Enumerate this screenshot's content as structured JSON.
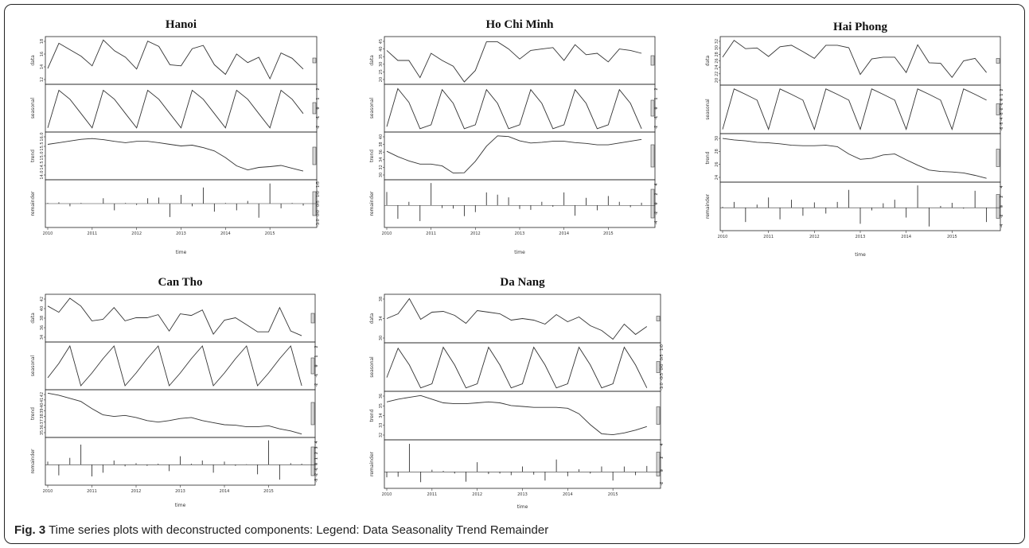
{
  "figure": {
    "label": "Fig. 3",
    "caption": "Time series plots with deconstructed components: Legend: Data Seasonality Trend Remainder"
  },
  "chart_data": [
    {
      "type": "line",
      "title": "Hanoi",
      "xlabel": "time",
      "x_ticks": [
        "2010",
        "2011",
        "2012",
        "2013",
        "2014",
        "2015"
      ],
      "x_range": [
        2010,
        2016
      ],
      "x": [
        2010.0,
        2010.25,
        2010.5,
        2010.75,
        2011.0,
        2011.25,
        2011.5,
        2011.75,
        2012.0,
        2012.25,
        2012.5,
        2012.75,
        2013.0,
        2013.25,
        2013.5,
        2013.75,
        2014.0,
        2014.25,
        2014.5,
        2014.75,
        2015.0,
        2015.25,
        2015.5,
        2015.75
      ],
      "panels": [
        {
          "name": "data",
          "type": "line",
          "ylim": [
            11,
            19
          ],
          "y_ticks": [
            "12",
            "14",
            "16",
            "18"
          ],
          "values": [
            13.5,
            18.2,
            17.0,
            15.8,
            14.0,
            18.8,
            16.8,
            15.6,
            13.4,
            18.6,
            17.6,
            14.2,
            14.0,
            17.2,
            17.8,
            14.2,
            12.4,
            16.2,
            14.6,
            15.6,
            11.6,
            16.4,
            15.4,
            13.4
          ]
        },
        {
          "name": "seasonal",
          "type": "line",
          "ylim": [
            -2.4,
            2.4
          ],
          "y_ticks": [
            "-2",
            "-1",
            "0",
            "1",
            "2"
          ],
          "values": [
            -2.2,
            2.0,
            1.0,
            -0.6,
            -2.2,
            2.0,
            1.0,
            -0.6,
            -2.2,
            2.0,
            1.0,
            -0.6,
            -2.2,
            2.0,
            1.0,
            -0.6,
            -2.2,
            2.0,
            1.0,
            -0.6,
            -2.2,
            2.0,
            1.0,
            -0.6
          ]
        },
        {
          "name": "trend",
          "type": "line",
          "ylim": [
            13.8,
            16.4
          ],
          "y_ticks": [
            "14.0",
            "14.5",
            "15.0",
            "15.5",
            "16.0"
          ],
          "values": [
            15.8,
            15.9,
            16.0,
            16.1,
            16.15,
            16.08,
            15.98,
            15.9,
            15.98,
            15.98,
            15.9,
            15.8,
            15.7,
            15.75,
            15.6,
            15.4,
            15.0,
            14.5,
            14.25,
            14.4,
            14.45,
            14.52,
            14.35,
            14.18
          ]
        },
        {
          "name": "remainder",
          "type": "spike",
          "ylim": [
            -1.6,
            1.6
          ],
          "y_ticks": [
            "-1.0",
            "0.0",
            "0.5",
            "1.0",
            "1.5"
          ],
          "values": [
            0.05,
            0.1,
            -0.2,
            0.05,
            0.0,
            0.4,
            -0.5,
            0.05,
            -0.1,
            0.4,
            0.45,
            -1.0,
            0.65,
            -0.2,
            1.2,
            -0.6,
            0.05,
            -0.5,
            0.2,
            -1.05,
            1.5,
            -0.35,
            0.05,
            -0.15
          ]
        }
      ]
    },
    {
      "type": "line",
      "title": "Ho Chi Minh",
      "xlabel": "time",
      "x_ticks": [
        "2010",
        "2011",
        "2012",
        "2013",
        "2014",
        "2015"
      ],
      "x_range": [
        2010,
        2016
      ],
      "x": [
        2010.0,
        2010.25,
        2010.5,
        2010.75,
        2011.0,
        2011.25,
        2011.5,
        2011.75,
        2012.0,
        2012.25,
        2012.5,
        2012.75,
        2013.0,
        2013.25,
        2013.5,
        2013.75,
        2014.0,
        2014.25,
        2014.5,
        2014.75,
        2015.0,
        2015.25,
        2015.5,
        2015.75
      ],
      "panels": [
        {
          "name": "data",
          "type": "line",
          "ylim": [
            16,
            46
          ],
          "y_ticks": [
            "20",
            "25",
            "30",
            "35",
            "40",
            "45"
          ],
          "values": [
            38,
            31,
            31,
            19,
            36,
            31,
            27,
            16,
            24,
            44,
            44,
            39,
            32,
            38,
            39,
            40,
            31,
            42,
            35,
            36,
            30,
            39,
            38,
            36
          ]
        },
        {
          "name": "seasonal",
          "type": "line",
          "ylim": [
            -2.3,
            2.1
          ],
          "y_ticks": [
            "-2",
            "-1",
            "0",
            "1",
            "2"
          ],
          "values": [
            -2.0,
            1.9,
            0.5,
            -2.2,
            -1.8,
            1.8,
            0.4,
            -2.2,
            -1.8,
            1.8,
            0.4,
            -2.2,
            -1.8,
            1.8,
            0.4,
            -2.2,
            -1.8,
            1.8,
            0.4,
            -2.2,
            -1.8,
            1.8,
            0.4,
            -2.2
          ]
        },
        {
          "name": "trend",
          "type": "line",
          "ylim": [
            28,
            40
          ],
          "y_ticks": [
            "30",
            "32",
            "34",
            "36",
            "38",
            "40"
          ],
          "values": [
            35.3,
            33.8,
            32.6,
            31.7,
            31.7,
            31.2,
            29.2,
            29.3,
            32.5,
            36.7,
            39.6,
            39.4,
            38.2,
            37.6,
            37.8,
            38.1,
            38.1,
            37.7,
            37.5,
            37.1,
            37.1,
            37.6,
            38.1,
            38.6
          ]
        },
        {
          "name": "remainder",
          "type": "spike",
          "ylim": [
            -4.4,
            5.2
          ],
          "y_ticks": [
            "-4",
            "-2",
            "0",
            "2",
            "4"
          ],
          "values": [
            3.0,
            -3.0,
            0.8,
            -3.5,
            5.0,
            -0.6,
            -0.7,
            -2.4,
            -1.5,
            2.9,
            2.4,
            1.8,
            -0.8,
            -1.0,
            0.8,
            -0.3,
            2.9,
            -2.3,
            1.7,
            -1.1,
            2.1,
            0.8,
            -0.4,
            0.6
          ]
        }
      ]
    },
    {
      "type": "line",
      "title": "Hai Phong",
      "xlabel": "time",
      "x_ticks": [
        "2010",
        "2011",
        "2012",
        "2013",
        "2014",
        "2015"
      ],
      "x_range": [
        2010,
        2016
      ],
      "x": [
        2010.0,
        2010.25,
        2010.5,
        2010.75,
        2011.0,
        2011.25,
        2011.5,
        2011.75,
        2012.0,
        2012.25,
        2012.5,
        2012.75,
        2013.0,
        2013.25,
        2013.5,
        2013.75,
        2014.0,
        2014.25,
        2014.5,
        2014.75,
        2015.0,
        2015.25,
        2015.5,
        2015.75
      ],
      "panels": [
        {
          "name": "data",
          "type": "line",
          "ylim": [
            17,
            35
          ],
          "y_ticks": [
            "20",
            "22",
            "24",
            "26",
            "28",
            "30",
            "32"
          ],
          "values": [
            27.5,
            34.4,
            31.0,
            31.3,
            27.8,
            31.8,
            32.4,
            29.8,
            27.0,
            32.4,
            32.4,
            31.4,
            20.4,
            26.8,
            27.5,
            27.5,
            21.2,
            32.6,
            25.2,
            25.0,
            19.2,
            26.0,
            27.0,
            21.2
          ]
        },
        {
          "name": "seasonal",
          "type": "line",
          "ylim": [
            -6.2,
            2.8
          ],
          "y_ticks": [
            "-6",
            "-5",
            "-4",
            "-3",
            "-2",
            "-1",
            "0",
            "1",
            "2"
          ],
          "values": [
            -5.8,
            2.5,
            1.4,
            0.2,
            -5.8,
            2.5,
            1.4,
            0.2,
            -5.8,
            2.5,
            1.4,
            0.2,
            -5.8,
            2.5,
            1.4,
            0.2,
            -5.8,
            2.5,
            1.4,
            0.2,
            -5.8,
            2.5,
            1.4,
            0.2
          ]
        },
        {
          "name": "trend",
          "type": "line",
          "ylim": [
            22.5,
            31.5
          ],
          "y_ticks": [
            "24",
            "26",
            "28",
            "30"
          ],
          "values": [
            31.0,
            30.7,
            30.5,
            30.2,
            30.1,
            29.9,
            29.6,
            29.5,
            29.5,
            29.6,
            29.3,
            27.8,
            26.7,
            26.9,
            27.6,
            27.8,
            26.6,
            25.5,
            24.5,
            24.2,
            24.1,
            23.9,
            23.4,
            22.8
          ]
        },
        {
          "name": "remainder",
          "type": "spike",
          "ylim": [
            -4.6,
            5.2
          ],
          "y_ticks": [
            "-4",
            "-2",
            "0",
            "2",
            "4"
          ],
          "values": [
            0.2,
            1.3,
            -3.2,
            0.7,
            2.3,
            -2.6,
            1.8,
            -1.8,
            1.2,
            -1.3,
            1.3,
            4.0,
            -3.6,
            -0.6,
            1.0,
            1.8,
            -2.2,
            5.0,
            -4.2,
            0.4,
            1.1,
            -0.2,
            3.8,
            -3.2
          ]
        }
      ]
    },
    {
      "type": "line",
      "title": "Can Tho",
      "xlabel": "time",
      "x_ticks": [
        "2010",
        "2011",
        "2012",
        "2013",
        "2014",
        "2015"
      ],
      "x_range": [
        2010,
        2016
      ],
      "x": [
        2010.0,
        2010.25,
        2010.5,
        2010.75,
        2011.0,
        2011.25,
        2011.5,
        2011.75,
        2012.0,
        2012.25,
        2012.5,
        2012.75,
        2013.0,
        2013.25,
        2013.5,
        2013.75,
        2014.0,
        2014.25,
        2014.5,
        2014.75,
        2015.0,
        2015.25,
        2015.5,
        2015.75
      ],
      "panels": [
        {
          "name": "data",
          "type": "line",
          "ylim": [
            33,
            44
          ],
          "y_ticks": [
            "34",
            "36",
            "38",
            "40",
            "42"
          ],
          "values": [
            41.6,
            40.0,
            43.6,
            41.6,
            37.8,
            38.2,
            41.2,
            37.8,
            38.6,
            38.6,
            39.4,
            35.2,
            39.6,
            39.2,
            40.6,
            34.4,
            38.0,
            38.6,
            36.8,
            35.0,
            35.0,
            41.2,
            35.2,
            34.0
          ]
        },
        {
          "name": "seasonal",
          "type": "line",
          "ylim": [
            -2.4,
            3.0
          ],
          "y_ticks": [
            "-2",
            "-1",
            "0",
            "1",
            "2"
          ],
          "values": [
            -1.2,
            0.6,
            2.8,
            -2.2,
            -0.6,
            1.2,
            2.8,
            -2.2,
            -0.6,
            1.2,
            2.8,
            -2.2,
            -0.6,
            1.2,
            2.8,
            -2.2,
            -0.6,
            1.2,
            2.8,
            -2.2,
            -0.6,
            1.2,
            2.8,
            -2.2
          ]
        },
        {
          "name": "trend",
          "type": "line",
          "ylim": [
            34.3,
            42.6
          ],
          "y_ticks": [
            "35",
            "36",
            "37",
            "38",
            "39",
            "40",
            "41",
            "42"
          ],
          "values": [
            42.4,
            42.0,
            41.4,
            40.8,
            39.4,
            38.2,
            37.9,
            38.1,
            37.7,
            37.1,
            36.8,
            37.1,
            37.5,
            37.7,
            37.1,
            36.7,
            36.3,
            36.2,
            35.9,
            35.9,
            36.1,
            35.5,
            35.1,
            34.5
          ]
        },
        {
          "name": "remainder",
          "type": "spike",
          "ylim": [
            -3.4,
            4.7
          ],
          "y_ticks": [
            "-3",
            "-2",
            "-1",
            "0",
            "1",
            "2",
            "3",
            "4"
          ],
          "values": [
            0.6,
            -2.0,
            1.3,
            3.8,
            -2.2,
            -1.5,
            0.8,
            -0.3,
            0.3,
            -0.2,
            0.2,
            -1.2,
            1.6,
            0.2,
            0.8,
            -1.5,
            0.6,
            -0.2,
            0.1,
            -1.8,
            4.6,
            -2.8,
            0.3,
            0.2
          ]
        }
      ]
    },
    {
      "type": "line",
      "title": "Da Nang",
      "xlabel": "time",
      "x_ticks": [
        "2010",
        "2011",
        "2012",
        "2013",
        "2014",
        "2015"
      ],
      "x_range": [
        2010,
        2016
      ],
      "x": [
        2010.0,
        2010.25,
        2010.5,
        2010.75,
        2011.0,
        2011.25,
        2011.5,
        2011.75,
        2012.0,
        2012.25,
        2012.5,
        2012.75,
        2013.0,
        2013.25,
        2013.5,
        2013.75,
        2014.0,
        2014.25,
        2014.5,
        2014.75,
        2015.0,
        2015.25,
        2015.5,
        2015.75
      ],
      "panels": [
        {
          "name": "data",
          "type": "line",
          "ylim": [
            29.5,
            40.5
          ],
          "y_ticks": [
            "30",
            "34",
            "38"
          ],
          "values": [
            35.0,
            36.2,
            40.0,
            34.8,
            36.6,
            36.8,
            35.8,
            33.8,
            37.0,
            36.6,
            36.2,
            34.6,
            35.0,
            34.6,
            33.6,
            36.0,
            34.2,
            35.4,
            33.2,
            32.0,
            29.8,
            33.6,
            31.0,
            33.0
          ]
        },
        {
          "name": "seasonal",
          "type": "line",
          "ylim": [
            -1.05,
            1.05
          ],
          "y_ticks": [
            "-1.0",
            "-0.5",
            "0.0",
            "0.5",
            "1.0"
          ],
          "values": [
            -0.5,
            0.9,
            0.1,
            -1.0,
            -0.8,
            0.95,
            0.1,
            -1.0,
            -0.8,
            0.95,
            0.1,
            -1.0,
            -0.8,
            0.95,
            0.1,
            -1.0,
            -0.8,
            0.95,
            0.1,
            -1.0,
            -0.8,
            0.95,
            0.1,
            -1.0
          ]
        },
        {
          "name": "trend",
          "type": "line",
          "ylim": [
            31.8,
            36.6
          ],
          "y_ticks": [
            "32",
            "33",
            "34",
            "35",
            "36"
          ],
          "values": [
            35.7,
            36.0,
            36.2,
            36.4,
            36.0,
            35.6,
            35.5,
            35.5,
            35.6,
            35.7,
            35.6,
            35.3,
            35.2,
            35.1,
            35.1,
            35.1,
            35.0,
            34.4,
            33.2,
            32.2,
            32.1,
            32.3,
            32.6,
            33.0
          ]
        },
        {
          "name": "remainder",
          "type": "spike",
          "ylim": [
            -2.6,
            5.5
          ],
          "y_ticks": [
            "-2",
            "0",
            "2",
            "4"
          ],
          "values": [
            -1.0,
            -0.9,
            5.2,
            -1.9,
            0.4,
            0.2,
            -0.3,
            -1.8,
            1.8,
            -0.4,
            -0.3,
            -0.6,
            1.0,
            -0.5,
            -1.6,
            2.3,
            -0.8,
            0.5,
            -0.3,
            1.0,
            -1.6,
            1.0,
            -0.6,
            1.1
          ]
        }
      ]
    }
  ]
}
